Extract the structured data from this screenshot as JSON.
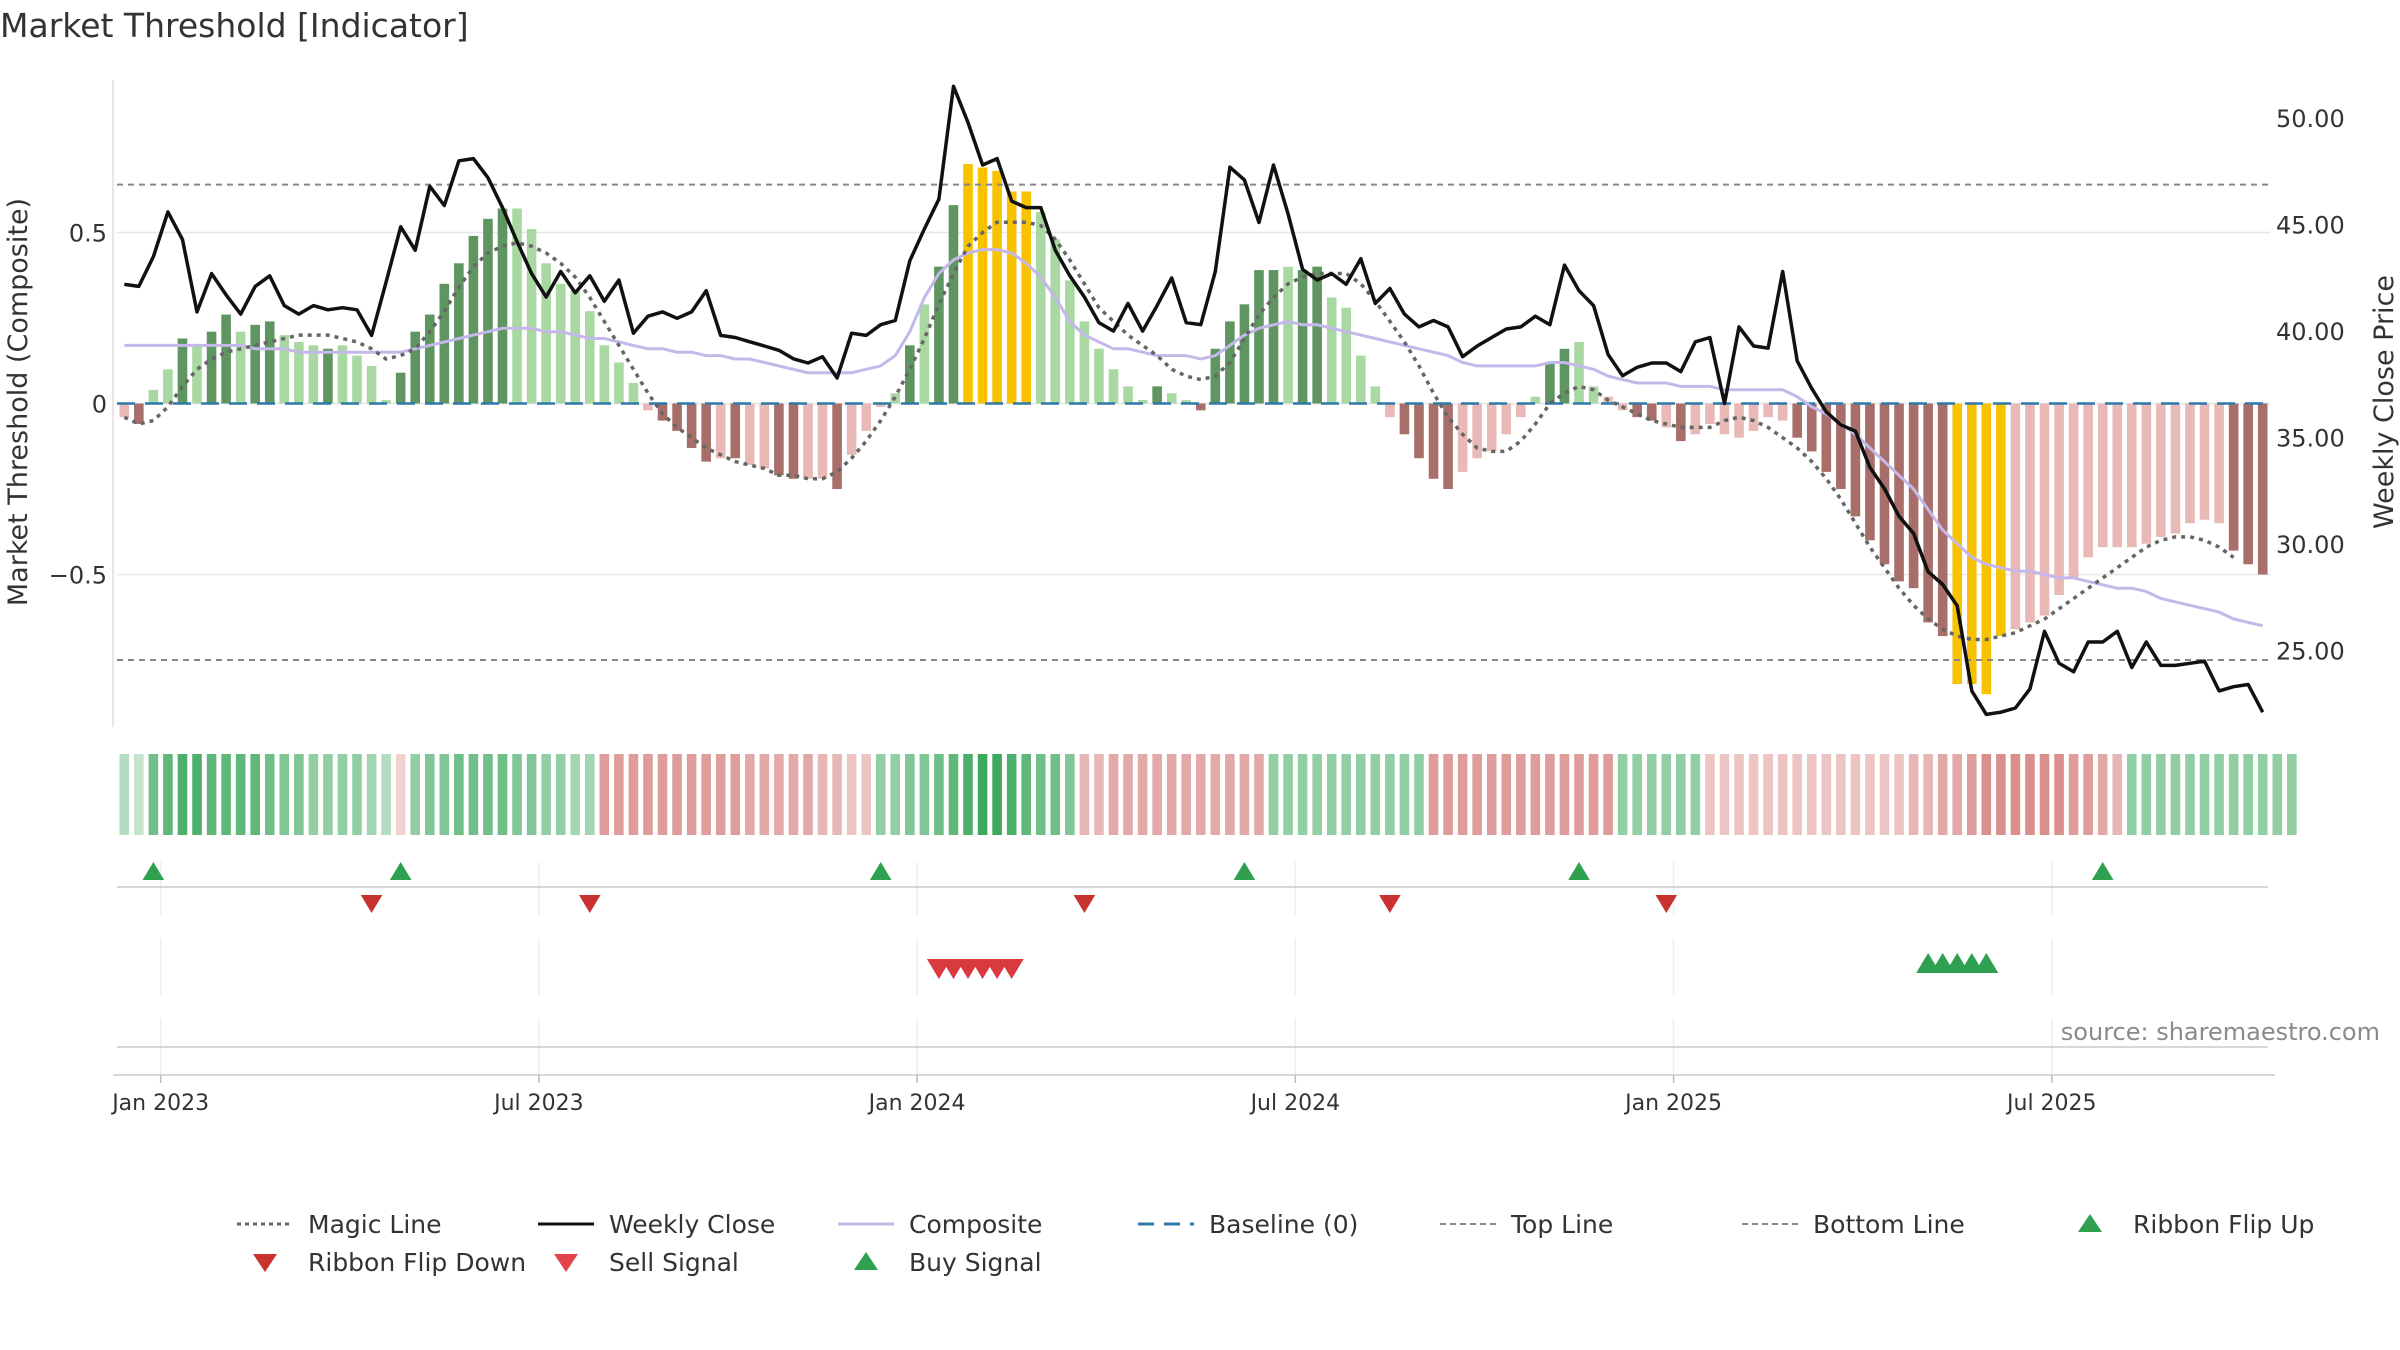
{
  "chart_data": {
    "type": "bar",
    "title": "Market Threshold [Indicator]",
    "ylabel_left": "Market Threshold (Composite)",
    "ylabel_right": "Weekly Close Price",
    "source": "source: sharemaestro.com",
    "ylim_left": [
      -0.94,
      0.94
    ],
    "ylim_right": [
      21.5,
      51.7
    ],
    "yticks_left": [
      {
        "v": 0.5,
        "label": "0.5"
      },
      {
        "v": 0,
        "label": "0"
      },
      {
        "v": -0.5,
        "label": "−0.5"
      }
    ],
    "yticks_right": [
      {
        "v": 50,
        "label": "50.00"
      },
      {
        "v": 45,
        "label": "45.00"
      },
      {
        "v": 40,
        "label": "40.00"
      },
      {
        "v": 35,
        "label": "35.00"
      },
      {
        "v": 30,
        "label": "30.00"
      },
      {
        "v": 25,
        "label": "25.00"
      }
    ],
    "xticks": [
      {
        "week": 2.5,
        "label": "Jan 2023"
      },
      {
        "week": 28.5,
        "label": "Jul 2023"
      },
      {
        "week": 54.5,
        "label": "Jan 2024"
      },
      {
        "week": 80.5,
        "label": "Jul 2024"
      },
      {
        "week": 106.5,
        "label": "Jan 2025"
      },
      {
        "week": 132.5,
        "label": "Jul 2025"
      }
    ],
    "top_line": 0.64,
    "bottom_line": -0.75,
    "baseline": 0,
    "colors": {
      "dark_green": "#5f9560",
      "light_green": "#a9d8a3",
      "dark_red": "#a86e6a",
      "light_red": "#e8b9b6",
      "gold": "#f7c200",
      "weekly_close": "#111111",
      "composite": "#c4b8ea",
      "magic_line": "#666666",
      "baseline": "#2d79a8",
      "buy": "#2ea050",
      "sell": "#d93a3f"
    },
    "bars": [
      -0.04,
      -0.06,
      0.04,
      0.1,
      0.19,
      0.17,
      0.21,
      0.26,
      0.21,
      0.23,
      0.24,
      0.2,
      0.18,
      0.17,
      0.16,
      0.17,
      0.14,
      0.11,
      0.01,
      0.09,
      0.21,
      0.26,
      0.35,
      0.41,
      0.49,
      0.54,
      0.57,
      0.57,
      0.51,
      0.41,
      0.35,
      0.33,
      0.27,
      0.17,
      0.12,
      0.06,
      -0.02,
      -0.05,
      -0.08,
      -0.13,
      -0.17,
      -0.16,
      -0.16,
      -0.18,
      -0.19,
      -0.21,
      -0.22,
      -0.22,
      -0.22,
      -0.25,
      -0.15,
      -0.08,
      -0.01,
      0.03,
      0.17,
      0.29,
      0.4,
      0.58,
      0.7,
      0.69,
      0.68,
      0.62,
      0.62,
      0.56,
      0.48,
      0.36,
      0.24,
      0.16,
      0.1,
      0.05,
      0.01,
      0.05,
      0.03,
      0.01,
      -0.02,
      0.16,
      0.24,
      0.29,
      0.39,
      0.39,
      0.4,
      0.39,
      0.4,
      0.31,
      0.28,
      0.14,
      0.05,
      -0.04,
      -0.09,
      -0.16,
      -0.22,
      -0.25,
      -0.2,
      -0.16,
      -0.14,
      -0.09,
      -0.04,
      0.02,
      0.12,
      0.16,
      0.18,
      0.05,
      0.02,
      -0.02,
      -0.04,
      -0.05,
      -0.07,
      -0.11,
      -0.09,
      -0.06,
      -0.09,
      -0.1,
      -0.08,
      -0.04,
      -0.05,
      -0.1,
      -0.14,
      -0.2,
      -0.25,
      -0.33,
      -0.4,
      -0.47,
      -0.52,
      -0.54,
      -0.64,
      -0.68,
      -0.82,
      -0.82,
      -0.85,
      -0.68,
      -0.66,
      -0.64,
      -0.62,
      -0.56,
      -0.51,
      -0.45,
      -0.42,
      -0.42,
      -0.42,
      -0.41,
      -0.39,
      -0.38,
      -0.35,
      -0.34,
      -0.35,
      -0.43,
      -0.47,
      -0.5
    ],
    "bar_tones": [
      "lr",
      "dr",
      "lg",
      "lg",
      "dg",
      "lg",
      "dg",
      "dg",
      "lg",
      "dg",
      "dg",
      "lg",
      "lg",
      "lg",
      "dg",
      "lg",
      "lg",
      "lg",
      "lg",
      "dg",
      "dg",
      "dg",
      "dg",
      "dg",
      "dg",
      "dg",
      "dg",
      "lg",
      "lg",
      "lg",
      "lg",
      "lg",
      "lg",
      "lg",
      "lg",
      "lg",
      "lr",
      "dr",
      "dr",
      "dr",
      "dr",
      "lr",
      "dr",
      "lr",
      "lr",
      "dr",
      "dr",
      "lr",
      "lr",
      "dr",
      "lr",
      "lr",
      "lr",
      "lg",
      "dg",
      "lg",
      "dg",
      "dg",
      "gold",
      "gold",
      "gold",
      "gold",
      "gold",
      "lg",
      "lg",
      "lg",
      "lg",
      "lg",
      "lg",
      "lg",
      "lg",
      "dg",
      "lg",
      "lg",
      "dr",
      "dg",
      "dg",
      "dg",
      "dg",
      "dg",
      "lg",
      "dg",
      "dg",
      "lg",
      "lg",
      "lg",
      "lg",
      "lr",
      "dr",
      "dr",
      "dr",
      "dr",
      "lr",
      "lr",
      "lr",
      "lr",
      "lr",
      "lg",
      "dg",
      "dg",
      "lg",
      "lg",
      "lr",
      "lr",
      "dr",
      "dr",
      "lr",
      "dr",
      "lr",
      "lr",
      "lr",
      "lr",
      "lr",
      "lr",
      "lr",
      "dr",
      "dr",
      "dr",
      "dr",
      "dr",
      "dr",
      "dr",
      "dr",
      "dr",
      "dr",
      "dr",
      "gold",
      "gold",
      "gold",
      "gold",
      "lr",
      "lr",
      "lr",
      "lr",
      "lr",
      "lr",
      "lr",
      "lr",
      "lr",
      "lr",
      "lr",
      "lr",
      "lr",
      "lr",
      "lr",
      "dr",
      "dr",
      "dr"
    ],
    "weekly_close": [
      42.2,
      42.1,
      43.5,
      45.6,
      44.3,
      40.9,
      42.7,
      41.7,
      40.8,
      42.1,
      42.6,
      41.2,
      40.8,
      41.2,
      41.0,
      41.1,
      41.0,
      39.8,
      42.3,
      44.9,
      43.8,
      46.8,
      45.9,
      48.0,
      48.1,
      47.2,
      45.8,
      44.2,
      42.7,
      41.6,
      42.8,
      41.8,
      42.6,
      41.4,
      42.4,
      39.9,
      40.7,
      40.9,
      40.6,
      40.9,
      41.9,
      39.8,
      39.7,
      39.5,
      39.3,
      39.1,
      38.7,
      38.5,
      38.8,
      37.8,
      39.9,
      39.8,
      40.3,
      40.5,
      43.3,
      44.8,
      46.2,
      51.5,
      49.8,
      47.8,
      48.1,
      46.1,
      45.8,
      45.8,
      43.8,
      42.6,
      41.6,
      40.4,
      40.0,
      41.3,
      40.0,
      41.2,
      42.5,
      40.4,
      40.3,
      42.8,
      47.7,
      47.1,
      45.1,
      47.8,
      45.5,
      42.9,
      42.4,
      42.7,
      42.2,
      43.4,
      41.3,
      42.0,
      40.8,
      40.2,
      40.5,
      40.2,
      38.8,
      39.3,
      39.7,
      40.1,
      40.2,
      40.7,
      40.3,
      43.1,
      41.9,
      41.2,
      38.9,
      37.9,
      38.3,
      38.5,
      38.5,
      38.1,
      39.5,
      39.7,
      36.6,
      40.2,
      39.3,
      39.2,
      42.8,
      38.6,
      37.3,
      36.2,
      35.6,
      35.3,
      33.6,
      32.6,
      31.3,
      30.5,
      28.7,
      28.1,
      27.1,
      23.1,
      22.0,
      22.1,
      22.3,
      23.2,
      25.9,
      24.4,
      24.0,
      25.4,
      25.4,
      25.9,
      24.2,
      25.4,
      24.3,
      24.3,
      24.4,
      24.5,
      23.1,
      23.3,
      23.4,
      22.1
    ],
    "composite": [
      0.17,
      0.17,
      0.17,
      0.17,
      0.17,
      0.17,
      0.17,
      0.17,
      0.17,
      0.16,
      0.16,
      0.16,
      0.15,
      0.15,
      0.15,
      0.15,
      0.15,
      0.15,
      0.15,
      0.15,
      0.16,
      0.17,
      0.18,
      0.19,
      0.2,
      0.21,
      0.22,
      0.22,
      0.22,
      0.21,
      0.21,
      0.2,
      0.19,
      0.19,
      0.18,
      0.17,
      0.16,
      0.16,
      0.15,
      0.15,
      0.14,
      0.14,
      0.13,
      0.13,
      0.12,
      0.11,
      0.1,
      0.09,
      0.09,
      0.09,
      0.09,
      0.1,
      0.11,
      0.14,
      0.21,
      0.31,
      0.38,
      0.42,
      0.44,
      0.45,
      0.45,
      0.44,
      0.41,
      0.37,
      0.31,
      0.24,
      0.2,
      0.18,
      0.16,
      0.16,
      0.15,
      0.14,
      0.14,
      0.14,
      0.13,
      0.14,
      0.17,
      0.2,
      0.22,
      0.23,
      0.24,
      0.23,
      0.23,
      0.22,
      0.21,
      0.2,
      0.19,
      0.18,
      0.17,
      0.16,
      0.15,
      0.14,
      0.12,
      0.11,
      0.11,
      0.11,
      0.11,
      0.11,
      0.12,
      0.12,
      0.11,
      0.1,
      0.08,
      0.07,
      0.06,
      0.06,
      0.06,
      0.05,
      0.05,
      0.05,
      0.04,
      0.04,
      0.04,
      0.04,
      0.04,
      0.02,
      -0.01,
      -0.03,
      -0.06,
      -0.09,
      -0.13,
      -0.17,
      -0.21,
      -0.25,
      -0.31,
      -0.37,
      -0.41,
      -0.45,
      -0.47,
      -0.48,
      -0.49,
      -0.49,
      -0.5,
      -0.51,
      -0.51,
      -0.52,
      -0.53,
      -0.54,
      -0.54,
      -0.55,
      -0.57,
      -0.58,
      -0.59,
      -0.6,
      -0.61,
      -0.63,
      -0.64,
      -0.65
    ],
    "magic_line": [
      -0.04,
      -0.06,
      -0.05,
      -0.01,
      0.05,
      0.1,
      0.13,
      0.15,
      0.16,
      0.17,
      0.18,
      0.19,
      0.2,
      0.2,
      0.2,
      0.19,
      0.18,
      0.16,
      0.13,
      0.14,
      0.16,
      0.21,
      0.27,
      0.34,
      0.4,
      0.44,
      0.46,
      0.47,
      0.46,
      0.44,
      0.41,
      0.37,
      0.31,
      0.24,
      0.17,
      0.1,
      0.03,
      -0.03,
      -0.07,
      -0.1,
      -0.13,
      -0.15,
      -0.17,
      -0.18,
      -0.19,
      -0.21,
      -0.21,
      -0.22,
      -0.22,
      -0.2,
      -0.16,
      -0.11,
      -0.05,
      0.02,
      0.1,
      0.19,
      0.29,
      0.38,
      0.46,
      0.5,
      0.53,
      0.53,
      0.53,
      0.52,
      0.48,
      0.42,
      0.35,
      0.28,
      0.24,
      0.2,
      0.17,
      0.14,
      0.1,
      0.08,
      0.07,
      0.08,
      0.12,
      0.19,
      0.26,
      0.31,
      0.35,
      0.37,
      0.38,
      0.38,
      0.38,
      0.35,
      0.3,
      0.24,
      0.18,
      0.11,
      0.03,
      -0.04,
      -0.09,
      -0.13,
      -0.14,
      -0.14,
      -0.11,
      -0.06,
      0.0,
      0.03,
      0.05,
      0.04,
      0.01,
      -0.01,
      -0.03,
      -0.05,
      -0.06,
      -0.07,
      -0.07,
      -0.07,
      -0.05,
      -0.04,
      -0.05,
      -0.07,
      -0.1,
      -0.13,
      -0.17,
      -0.22,
      -0.28,
      -0.35,
      -0.42,
      -0.48,
      -0.54,
      -0.59,
      -0.63,
      -0.66,
      -0.68,
      -0.69,
      -0.69,
      -0.68,
      -0.67,
      -0.65,
      -0.63,
      -0.6,
      -0.57,
      -0.54,
      -0.51,
      -0.48,
      -0.45,
      -0.42,
      -0.4,
      -0.39,
      -0.39,
      -0.4,
      -0.42,
      -0.45
    ],
    "ribbon": [
      0.2,
      0.1,
      0.6,
      0.7,
      0.8,
      0.8,
      0.7,
      0.7,
      0.7,
      0.7,
      0.6,
      0.5,
      0.5,
      0.4,
      0.4,
      0.4,
      0.4,
      0.3,
      0.2,
      -0.1,
      0.4,
      0.5,
      0.5,
      0.6,
      0.6,
      0.6,
      0.6,
      0.5,
      0.5,
      0.4,
      0.4,
      0.3,
      0.3,
      -0.5,
      -0.5,
      -0.5,
      -0.5,
      -0.5,
      -0.5,
      -0.5,
      -0.5,
      -0.5,
      -0.5,
      -0.4,
      -0.4,
      -0.4,
      -0.4,
      -0.4,
      -0.3,
      -0.3,
      -0.2,
      -0.2,
      0.4,
      0.4,
      0.5,
      0.5,
      0.6,
      0.7,
      0.8,
      0.9,
      0.9,
      0.8,
      0.7,
      0.6,
      0.6,
      0.5,
      -0.3,
      -0.3,
      -0.4,
      -0.4,
      -0.4,
      -0.4,
      -0.4,
      -0.4,
      -0.4,
      -0.4,
      -0.4,
      -0.4,
      -0.4,
      0.4,
      0.4,
      0.4,
      0.4,
      0.4,
      0.4,
      0.4,
      0.4,
      0.4,
      0.4,
      0.4,
      -0.5,
      -0.5,
      -0.5,
      -0.5,
      -0.5,
      -0.5,
      -0.5,
      -0.5,
      -0.5,
      -0.5,
      -0.5,
      -0.5,
      -0.5,
      0.4,
      0.4,
      0.4,
      0.4,
      0.4,
      0.4,
      -0.2,
      -0.2,
      -0.2,
      -0.2,
      -0.2,
      -0.2,
      -0.2,
      -0.2,
      -0.2,
      -0.2,
      -0.2,
      -0.2,
      -0.2,
      -0.2,
      -0.3,
      -0.3,
      -0.4,
      -0.4,
      -0.5,
      -0.6,
      -0.6,
      -0.6,
      -0.6,
      -0.6,
      -0.6,
      -0.5,
      -0.5,
      -0.4,
      -0.3,
      0.4,
      0.4,
      0.4,
      0.4,
      0.4,
      0.4,
      0.4,
      0.4,
      0.4,
      0.4,
      0.4,
      0.4
    ],
    "ribbon_flip_up": [
      2,
      19,
      52,
      77,
      100,
      136
    ],
    "ribbon_flip_down": [
      17,
      32,
      66,
      87,
      106
    ],
    "sell_signals": [
      56,
      57,
      58,
      59,
      60,
      61
    ],
    "buy_signals": [
      124,
      125,
      126,
      127,
      128
    ],
    "legend": [
      {
        "label": "Magic Line",
        "style": "dotted",
        "color": "#666666"
      },
      {
        "label": "Weekly Close",
        "style": "solid",
        "color": "#111111"
      },
      {
        "label": "Composite",
        "style": "solid",
        "color": "#c4b8ea"
      },
      {
        "label": "Baseline (0)",
        "style": "dashed",
        "color": "#2d79a8"
      },
      {
        "label": "Top Line",
        "style": "dashed-thin",
        "color": "#888888"
      },
      {
        "label": "Bottom Line",
        "style": "dashed-thin",
        "color": "#888888"
      },
      {
        "label": "Ribbon Flip Up",
        "style": "tri-up",
        "color": "#2ea050"
      },
      {
        "label": "Ribbon Flip Down",
        "style": "tri-down",
        "color": "#c8332f"
      },
      {
        "label": "Sell Signal",
        "style": "tri-down",
        "color": "#e0434b"
      },
      {
        "label": "Buy Signal",
        "style": "tri-up",
        "color": "#2ea050"
      }
    ]
  }
}
